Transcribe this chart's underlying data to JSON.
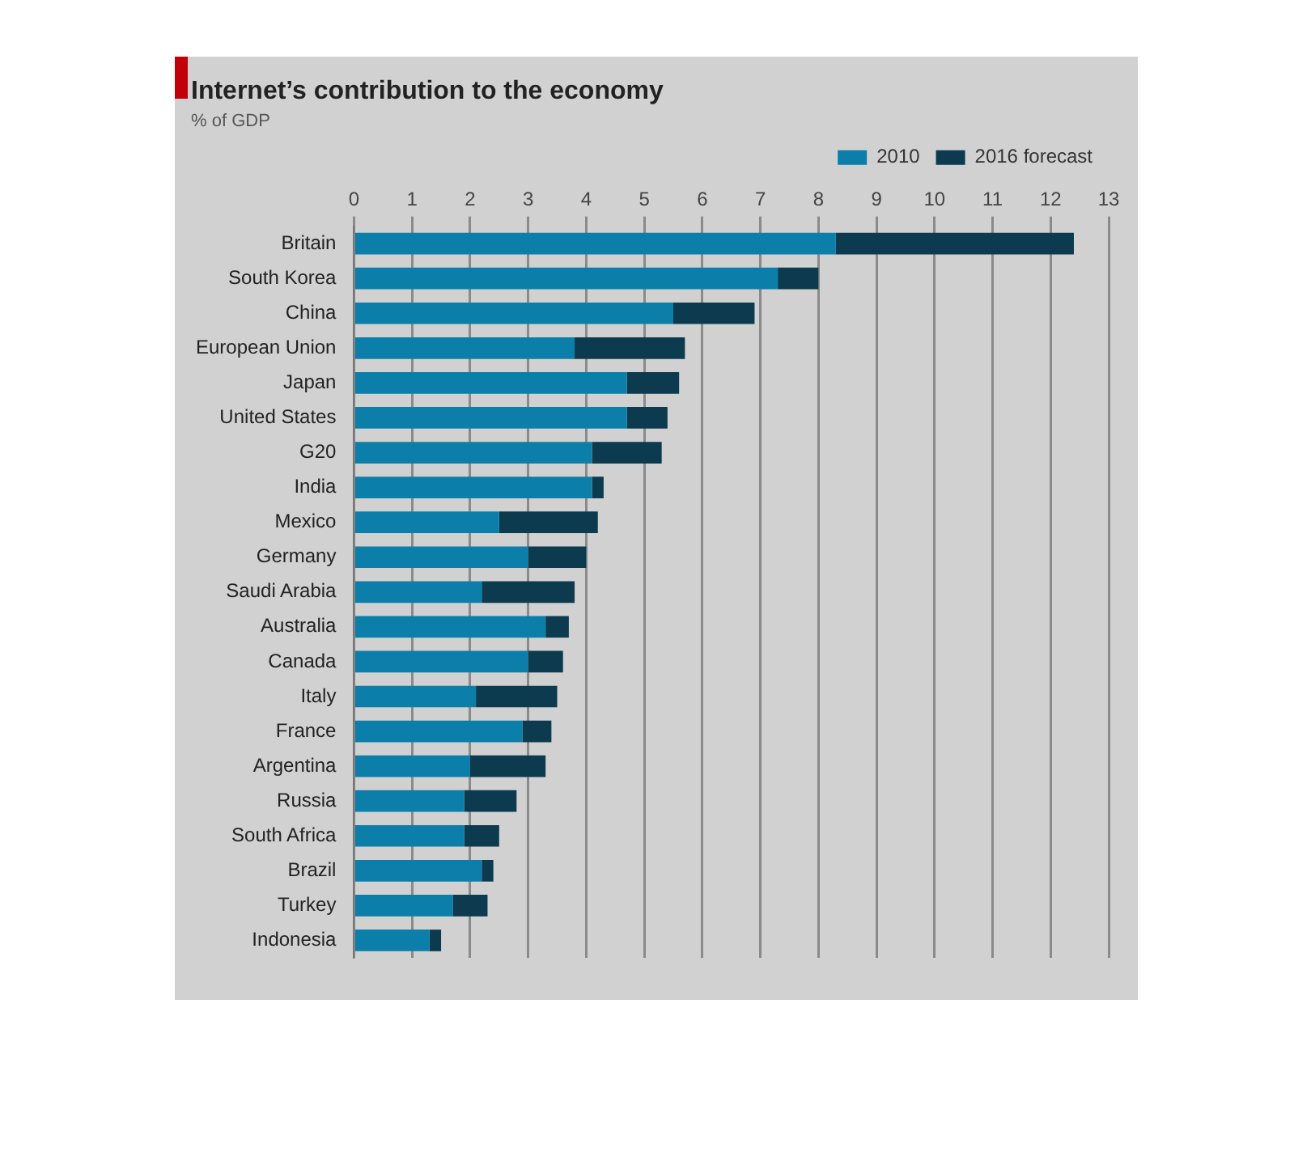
{
  "chart_data": {
    "type": "bar",
    "orientation": "horizontal",
    "stacked": true,
    "title": "Internet’s contribution to the economy",
    "subtitle": "% of GDP",
    "categories": [
      "Britain",
      "South Korea",
      "China",
      "European Union",
      "Japan",
      "United States",
      "G20",
      "India",
      "Mexico",
      "Germany",
      "Saudi Arabia",
      "Australia",
      "Canada",
      "Italy",
      "France",
      "Argentina",
      "Russia",
      "South Africa",
      "Brazil",
      "Turkey",
      "Indonesia"
    ],
    "series": [
      {
        "name": "2010",
        "color": "#0b7fa9",
        "values": [
          8.3,
          7.3,
          5.5,
          3.8,
          4.7,
          4.7,
          4.1,
          4.1,
          2.5,
          3.0,
          2.2,
          3.3,
          3.0,
          2.1,
          2.9,
          2.0,
          1.9,
          1.9,
          2.2,
          1.7,
          1.3
        ]
      },
      {
        "name": "2016 forecast",
        "color": "#0c3a4e",
        "values": [
          4.1,
          0.7,
          1.4,
          1.9,
          0.9,
          0.7,
          1.2,
          0.2,
          1.7,
          1.0,
          1.6,
          0.4,
          0.6,
          1.4,
          0.5,
          1.3,
          0.9,
          0.6,
          0.2,
          0.6,
          0.2
        ]
      }
    ],
    "xlim": [
      0,
      13
    ],
    "xticks": [
      0,
      1,
      2,
      3,
      4,
      5,
      6,
      7,
      8,
      9,
      10,
      11,
      12,
      13
    ],
    "grid": "x",
    "legend": "top right"
  }
}
